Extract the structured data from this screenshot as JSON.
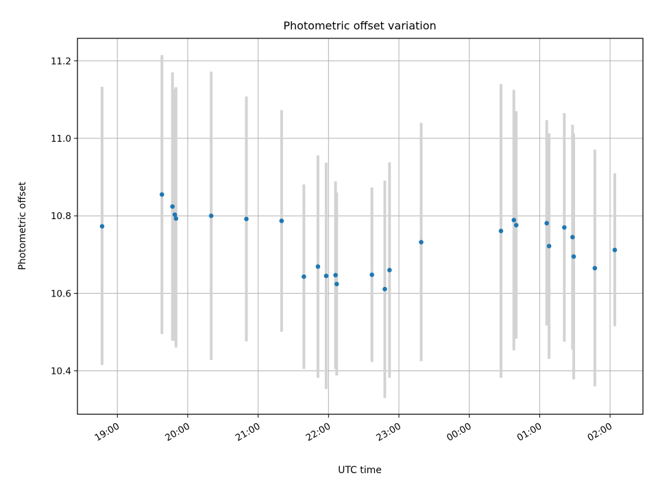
{
  "chart_data": {
    "type": "scatter",
    "title": "Photometric offset variation",
    "xlabel": "UTC time",
    "ylabel": "Photometric offset",
    "grid": true,
    "x_range": [
      "18:26",
      "02:28"
    ],
    "ylim": [
      10.288,
      11.258
    ],
    "x_ticks": [
      "19:00",
      "20:00",
      "21:00",
      "22:00",
      "23:00",
      "00:00",
      "01:00",
      "02:00"
    ],
    "y_ticks": [
      "10.4",
      "10.6",
      "10.8",
      "11.0",
      "11.2"
    ],
    "colors": {
      "points": "#1f77b4",
      "errorbars": "#d3d3d3",
      "grid": "#b0b0b0"
    },
    "points": [
      {
        "x": "18:47",
        "y": 10.773,
        "ylow": 10.415,
        "yhigh": 11.133
      },
      {
        "x": "19:38",
        "y": 10.855,
        "ylow": 10.495,
        "yhigh": 11.215
      },
      {
        "x": "19:47",
        "y": 10.824,
        "ylow": 10.478,
        "yhigh": 11.17
      },
      {
        "x": "19:49",
        "y": 10.803,
        "ylow": 10.477,
        "yhigh": 11.127
      },
      {
        "x": "19:50",
        "y": 10.793,
        "ylow": 10.46,
        "yhigh": 11.132
      },
      {
        "x": "20:20",
        "y": 10.8,
        "ylow": 10.428,
        "yhigh": 11.172
      },
      {
        "x": "20:50",
        "y": 10.792,
        "ylow": 10.476,
        "yhigh": 11.108
      },
      {
        "x": "21:20",
        "y": 10.787,
        "ylow": 10.501,
        "yhigh": 11.073
      },
      {
        "x": "21:39",
        "y": 10.643,
        "ylow": 10.405,
        "yhigh": 10.881
      },
      {
        "x": "21:51",
        "y": 10.669,
        "ylow": 10.382,
        "yhigh": 10.956
      },
      {
        "x": "21:58",
        "y": 10.645,
        "ylow": 10.353,
        "yhigh": 10.937
      },
      {
        "x": "22:06",
        "y": 10.647,
        "ylow": 10.405,
        "yhigh": 10.889
      },
      {
        "x": "22:07",
        "y": 10.624,
        "ylow": 10.388,
        "yhigh": 10.86
      },
      {
        "x": "22:37",
        "y": 10.648,
        "ylow": 10.423,
        "yhigh": 10.873
      },
      {
        "x": "22:48",
        "y": 10.611,
        "ylow": 10.33,
        "yhigh": 10.891
      },
      {
        "x": "22:52",
        "y": 10.66,
        "ylow": 10.382,
        "yhigh": 10.938
      },
      {
        "x": "23:19",
        "y": 10.732,
        "ylow": 10.425,
        "yhigh": 11.04
      },
      {
        "x": "00:27",
        "y": 10.761,
        "ylow": 10.382,
        "yhigh": 11.14
      },
      {
        "x": "00:38",
        "y": 10.789,
        "ylow": 10.453,
        "yhigh": 11.125
      },
      {
        "x": "00:40",
        "y": 10.776,
        "ylow": 10.483,
        "yhigh": 11.07
      },
      {
        "x": "01:06",
        "y": 10.781,
        "ylow": 10.517,
        "yhigh": 11.047
      },
      {
        "x": "01:08",
        "y": 10.722,
        "ylow": 10.431,
        "yhigh": 11.013
      },
      {
        "x": "01:21",
        "y": 10.77,
        "ylow": 10.475,
        "yhigh": 11.065
      },
      {
        "x": "01:28",
        "y": 10.745,
        "ylow": 10.455,
        "yhigh": 11.035
      },
      {
        "x": "01:29",
        "y": 10.695,
        "ylow": 10.378,
        "yhigh": 11.012
      },
      {
        "x": "01:47",
        "y": 10.665,
        "ylow": 10.36,
        "yhigh": 10.971
      },
      {
        "x": "02:04",
        "y": 10.712,
        "ylow": 10.515,
        "yhigh": 10.91
      }
    ]
  }
}
